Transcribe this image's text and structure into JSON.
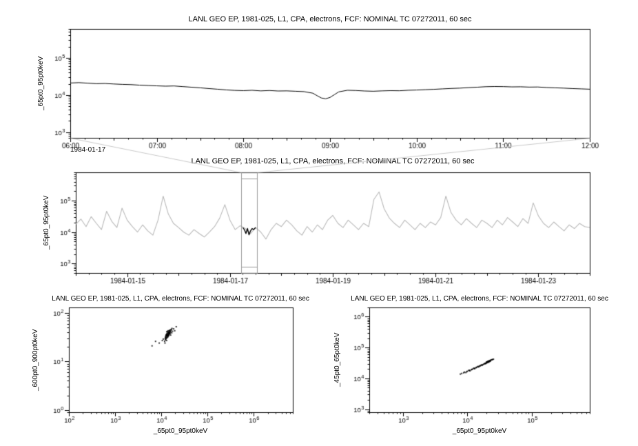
{
  "window": {
    "background": "#ffffff",
    "foreground": "#000000",
    "context_color": "#b8b8b8",
    "selection_color": "#9a9a9a",
    "connector_color": "#c8c8c8"
  },
  "chart_data": [
    {
      "id": "timeseries-zoom",
      "type": "line",
      "title": "LANL GEO EP, 1981-025, L1, CPA, electrons, FCF: NOMINAL TC 07272011, 60 sec",
      "xlabel": "",
      "ylabel": "_65pt0_95pt0keV",
      "x_axis": {
        "scale": "linear",
        "unit": "hours on 1984-01-17",
        "min": 6,
        "max": 12,
        "major_ticks": [
          6,
          7,
          8,
          9,
          10,
          11,
          12
        ],
        "tick_labels": [
          "06:00",
          "07:00",
          "08:00",
          "09:00",
          "10:00",
          "11:00",
          "12:00"
        ],
        "minor_step": 0.166667,
        "medium_step": 0.5,
        "date_label": "1984-01-17"
      },
      "y_axis": {
        "scale": "log",
        "min": 700,
        "max": 600000,
        "label_exponents": [
          3,
          4,
          5
        ],
        "tick_labels": [
          "10^3",
          "10^4",
          "10^5"
        ]
      },
      "series": [
        {
          "name": "_65pt0_95pt0keV",
          "color": "#000000",
          "width": 1,
          "x": [
            6.0,
            6.1,
            6.2,
            6.3,
            6.4,
            6.5,
            6.6,
            6.7,
            6.8,
            6.9,
            7.0,
            7.1,
            7.2,
            7.3,
            7.4,
            7.5,
            7.6,
            7.7,
            7.8,
            7.9,
            8.0,
            8.1,
            8.2,
            8.3,
            8.4,
            8.5,
            8.6,
            8.7,
            8.8,
            8.85,
            8.9,
            8.95,
            9.0,
            9.05,
            9.1,
            9.2,
            9.3,
            9.4,
            9.5,
            9.6,
            9.7,
            9.8,
            9.9,
            10.0,
            10.1,
            10.2,
            10.3,
            10.4,
            10.5,
            10.6,
            10.7,
            10.8,
            10.9,
            11.0,
            11.1,
            11.2,
            11.3,
            11.4,
            11.5,
            11.6,
            11.7,
            11.8,
            11.9,
            12.0
          ],
          "y": [
            21000,
            21500,
            20800,
            20200,
            20400,
            19800,
            19300,
            19000,
            18400,
            18000,
            17600,
            17300,
            17500,
            16800,
            16200,
            15600,
            14900,
            14300,
            13700,
            13300,
            13100,
            13400,
            12900,
            13200,
            12800,
            12900,
            12600,
            12300,
            11200,
            9600,
            8300,
            7900,
            8600,
            10200,
            12100,
            13400,
            13200,
            12800,
            12600,
            12900,
            13100,
            13000,
            13400,
            13600,
            13900,
            14200,
            14600,
            15000,
            15300,
            15800,
            16200,
            16700,
            16900,
            16800,
            16500,
            16600,
            16300,
            16400,
            15900,
            15600,
            15300,
            14900,
            14600,
            14300
          ]
        }
      ]
    },
    {
      "id": "timeseries-context",
      "type": "line",
      "title": "LANL GEO EP, 1981-025, L1, CPA, electrons, FCF: NOMINAL TC 07272011, 60 sec",
      "xlabel": "",
      "ylabel": "_65pt0_95pt0keV",
      "selection": {
        "x_start": 17.22,
        "x_end": 17.53,
        "label": "1984-01-17 06:00 to 12:00"
      },
      "x_axis": {
        "scale": "linear",
        "unit": "days of 1984-01",
        "min": 14,
        "max": 24,
        "major_ticks": [
          15,
          17,
          19,
          21,
          23
        ],
        "tick_labels": [
          "1984-01-15",
          "1984-01-17",
          "1984-01-19",
          "1984-01-21",
          "1984-01-23"
        ],
        "minor_step": 0.25,
        "medium_step": 1
      },
      "y_axis": {
        "scale": "log",
        "min": 500,
        "max": 800000,
        "label_exponents": [
          3,
          4,
          5
        ],
        "tick_labels": [
          "10^3",
          "10^4",
          "10^5"
        ]
      },
      "series": [
        {
          "name": "context _65pt0_95pt0keV",
          "color": "#b8b8b8",
          "width": 1.1,
          "x0": 14.0,
          "dx": 0.1,
          "y": [
            18000,
            26000,
            15000,
            31000,
            19000,
            12000,
            46000,
            22000,
            14000,
            58000,
            24000,
            15000,
            10000,
            17000,
            11000,
            8000,
            24000,
            140000,
            38000,
            19000,
            14000,
            10000,
            8000,
            12000,
            9000,
            7000,
            10000,
            15000,
            28000,
            75000,
            24000,
            12000,
            16000,
            13000,
            9000,
            14000,
            10000,
            6000,
            12000,
            19000,
            15000,
            24000,
            17000,
            11000,
            8000,
            15000,
            10000,
            17000,
            12000,
            24000,
            34000,
            19000,
            14000,
            24000,
            17000,
            12000,
            19000,
            15000,
            110000,
            190000,
            55000,
            28000,
            19000,
            14000,
            24000,
            17000,
            12000,
            19000,
            14000,
            21000,
            17000,
            29000,
            140000,
            42000,
            24000,
            17000,
            27000,
            19000,
            14000,
            24000,
            19000,
            14000,
            24000,
            17000,
            29000,
            21000,
            15000,
            27000,
            19000,
            85000,
            33000,
            19000,
            14000,
            21000,
            15000,
            11000,
            17000,
            13000,
            19000,
            15000,
            14000
          ]
        },
        {
          "name": "selected interval",
          "color": "#000000",
          "width": 1.4,
          "x": [
            17.25,
            17.28,
            17.31,
            17.34,
            17.37,
            17.4,
            17.43,
            17.46,
            17.5
          ],
          "y": [
            14000,
            12000,
            9000,
            13000,
            8200,
            11000,
            13000,
            12000,
            14000
          ]
        }
      ]
    },
    {
      "id": "scatter-600-900-vs-65-95",
      "type": "scatter",
      "title": "LANL GEO EP, 1981-025, L1, CPA, electrons, FCF: NOMINAL TC 07272011, 60 sec",
      "xlabel": "_65pt0_95pt0keV",
      "ylabel": "_600pt0_900pt0keV",
      "x_axis": {
        "scale": "log",
        "min": 100,
        "max": 7000000,
        "label_exponents": [
          2,
          3,
          4,
          5,
          6
        ],
        "tick_labels": [
          "10^2",
          "10^3",
          "10^4",
          "10^5",
          "10^6"
        ]
      },
      "y_axis": {
        "scale": "log",
        "min": 0.9,
        "max": 130,
        "label_exponents": [
          0,
          1,
          2
        ],
        "tick_labels": [
          "10^0",
          "10^1",
          "10^2"
        ]
      },
      "series": [
        {
          "name": "scatter",
          "color": "#000000",
          "points": [
            [
              12500,
              32
            ],
            [
              13200,
              35
            ],
            [
              14100,
              38
            ],
            [
              12800,
              30
            ],
            [
              13600,
              34
            ],
            [
              15000,
              40
            ],
            [
              14500,
              36
            ],
            [
              13900,
              33
            ],
            [
              12200,
              28
            ],
            [
              13100,
              37
            ],
            [
              14800,
              42
            ],
            [
              15500,
              38
            ],
            [
              13400,
              31
            ],
            [
              12900,
              36
            ],
            [
              14200,
              39
            ],
            [
              13700,
              35
            ],
            [
              15200,
              44
            ],
            [
              16000,
              41
            ],
            [
              12600,
              29
            ],
            [
              13300,
              34
            ],
            [
              14600,
              37
            ],
            [
              13800,
              32
            ],
            [
              12400,
              33
            ],
            [
              15800,
              45
            ],
            [
              14400,
              40
            ],
            [
              13500,
              36
            ],
            [
              12700,
              31
            ],
            [
              14000,
              35
            ],
            [
              14900,
              43
            ],
            [
              16500,
              46
            ],
            [
              13000,
              27
            ],
            [
              12100,
              30
            ],
            [
              15300,
              39
            ],
            [
              14700,
              38
            ],
            [
              13600,
              42
            ],
            [
              12800,
              34
            ],
            [
              14300,
              36
            ],
            [
              15600,
              41
            ],
            [
              13200,
              33
            ],
            [
              14100,
              37
            ],
            [
              17000,
              48
            ],
            [
              16200,
              44
            ],
            [
              11800,
              26
            ],
            [
              12300,
              31
            ],
            [
              13900,
              40
            ],
            [
              15100,
              37
            ],
            [
              14500,
              34
            ],
            [
              13400,
              38
            ],
            [
              12600,
              35
            ],
            [
              14800,
              39
            ],
            [
              11000,
              29
            ],
            [
              10500,
              27
            ],
            [
              18500,
              47
            ],
            [
              19500,
              43
            ],
            [
              16800,
              39
            ],
            [
              13100,
              41
            ],
            [
              15900,
              35
            ],
            [
              14200,
              43
            ],
            [
              9000,
              24
            ],
            [
              7500,
              26
            ],
            [
              6300,
              21
            ],
            [
              21000,
              52
            ],
            [
              12000,
              24
            ],
            [
              17500,
              42
            ]
          ]
        }
      ]
    },
    {
      "id": "scatter-45-65-vs-65-95",
      "type": "scatter",
      "title": "LANL GEO EP, 1981-025, L1, CPA, electrons, FCF: NOMINAL TC 07272011, 60 sec",
      "xlabel": "_65pt0_95pt0keV",
      "ylabel": "_45pt0_65pt0keV",
      "x_axis": {
        "scale": "log",
        "min": 300,
        "max": 800000,
        "label_exponents": [
          3,
          4,
          5
        ],
        "tick_labels": [
          "10^3",
          "10^4",
          "10^5"
        ]
      },
      "y_axis": {
        "scale": "log",
        "min": 800,
        "max": 2000000,
        "label_exponents": [
          3,
          4,
          5,
          6
        ],
        "tick_labels": [
          "10^3",
          "10^4",
          "10^5",
          "10^6"
        ]
      },
      "series": [
        {
          "name": "scatter",
          "color": "#000000",
          "points": [
            [
              8200,
              14500
            ],
            [
              9000,
              16000
            ],
            [
              9500,
              15500
            ],
            [
              10000,
              17000
            ],
            [
              10500,
              18000
            ],
            [
              11000,
              17500
            ],
            [
              11500,
              19000
            ],
            [
              12000,
              20000
            ],
            [
              12500,
              21000
            ],
            [
              13000,
              20500
            ],
            [
              13500,
              22000
            ],
            [
              14000,
              23000
            ],
            [
              14500,
              24000
            ],
            [
              15000,
              23500
            ],
            [
              15500,
              25000
            ],
            [
              16000,
              26000
            ],
            [
              16500,
              27000
            ],
            [
              17000,
              26500
            ],
            [
              17500,
              28000
            ],
            [
              18000,
              29000
            ],
            [
              18500,
              30000
            ],
            [
              19000,
              31000
            ],
            [
              19500,
              30500
            ],
            [
              20000,
              32000
            ],
            [
              20500,
              33000
            ],
            [
              21000,
              34000
            ],
            [
              21500,
              33500
            ],
            [
              22000,
              35000
            ],
            [
              22500,
              36000
            ],
            [
              23000,
              37000
            ],
            [
              19800,
              33800
            ],
            [
              20200,
              34500
            ],
            [
              20800,
              35500
            ],
            [
              21200,
              36200
            ],
            [
              21800,
              37000
            ],
            [
              22200,
              37500
            ],
            [
              22800,
              38500
            ],
            [
              23200,
              39000
            ],
            [
              23800,
              40000
            ],
            [
              24200,
              40500
            ],
            [
              20100,
              32500
            ],
            [
              20600,
              33200
            ],
            [
              21100,
              34800
            ],
            [
              21600,
              35800
            ],
            [
              22100,
              36500
            ],
            [
              19600,
              31800
            ],
            [
              19200,
              30800
            ],
            [
              18800,
              29800
            ],
            [
              24800,
              41000
            ],
            [
              25500,
              42000
            ],
            [
              9800,
              16500
            ],
            [
              10800,
              18500
            ],
            [
              12800,
              21500
            ],
            [
              14800,
              24500
            ],
            [
              16800,
              27500
            ],
            [
              7800,
              13800
            ],
            [
              8800,
              15200
            ],
            [
              11800,
              19500
            ],
            [
              13800,
              22500
            ],
            [
              15800,
              25500
            ]
          ]
        }
      ]
    }
  ]
}
